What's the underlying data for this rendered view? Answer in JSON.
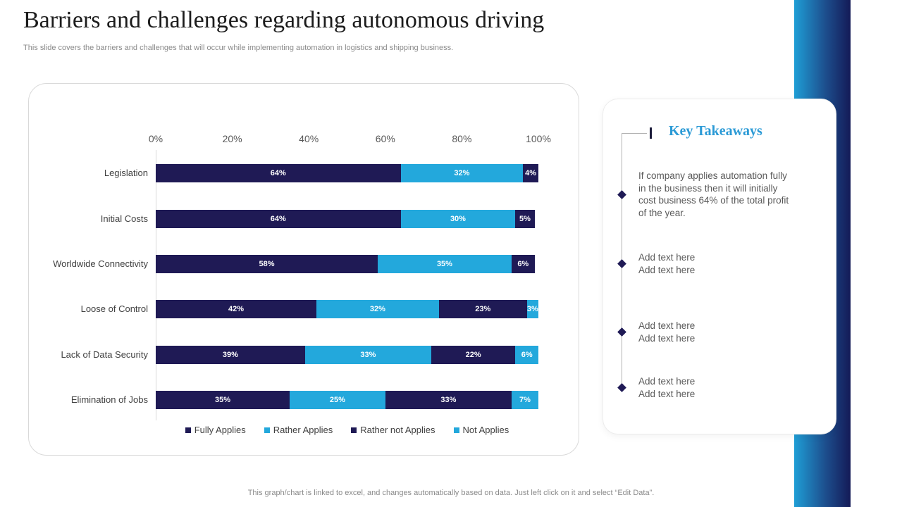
{
  "slide": {
    "title": "Barriers and challenges regarding autonomous driving",
    "subtitle": "This slide covers the barriers and challenges that will occur while implementing automation in logistics and shipping business.",
    "footer": "This graph/chart is linked to excel, and changes automatically based on data. Just left click on it and select “Edit Data”."
  },
  "chart_data": {
    "type": "bar",
    "orientation": "horizontal",
    "stacked": true,
    "categories": [
      "Legislation",
      "Initial Costs",
      "Worldwide Connectivity",
      "Loose of Control",
      "Lack of Data Security",
      "Elimination of Jobs"
    ],
    "series": [
      {
        "name": "Fully Applies",
        "color": "#1f1a55",
        "values": [
          64,
          64,
          58,
          42,
          39,
          35
        ]
      },
      {
        "name": "Rather Applies",
        "color": "#23a8dc",
        "values": [
          32,
          30,
          35,
          32,
          33,
          25
        ]
      },
      {
        "name": "Rather not Applies",
        "color": "#1f1a55",
        "values": [
          4,
          5,
          6,
          23,
          22,
          33
        ]
      },
      {
        "name": "Not Applies",
        "color": "#23a8dc",
        "values": [
          0,
          0,
          0,
          3,
          6,
          7
        ]
      }
    ],
    "x_ticks": [
      "0%",
      "20%",
      "40%",
      "60%",
      "80%",
      "100%"
    ],
    "xlim": [
      0,
      100
    ],
    "value_suffix": "%",
    "legend_position": "bottom",
    "grid": false
  },
  "takeaways": {
    "title": "Key Takeaways",
    "items": [
      "If company applies automation fully\nin the business then it will initially\ncost business 64% of the total profit\nof the year.",
      "Add text here\nAdd text here",
      "Add text here\nAdd text here",
      "Add text here\nAdd text here"
    ]
  },
  "colors": {
    "navy": "#1f1a55",
    "light_blue": "#23a8dc",
    "takeaways_title": "#2b9ad6",
    "strip_from": "#1f9ed6",
    "strip_to": "#141a57"
  }
}
